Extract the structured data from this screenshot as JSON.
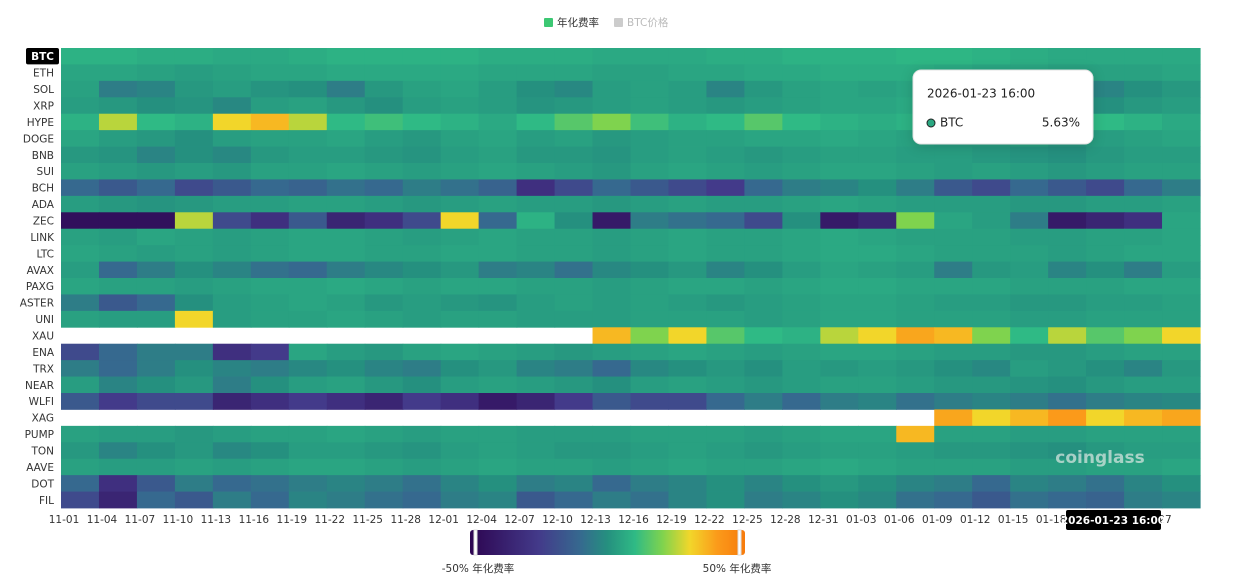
{
  "chart_data": {
    "type": "heatmap",
    "legend": [
      {
        "name": "年化费率",
        "color": "#3cc873"
      },
      {
        "name": "BTC价格",
        "color": "#cccccc"
      }
    ],
    "categories": [
      "11-01",
      "11-04",
      "11-07",
      "11-10",
      "11-13",
      "11-16",
      "11-19",
      "11-22",
      "11-25",
      "11-28",
      "12-01",
      "12-04",
      "12-07",
      "12-10",
      "12-13",
      "12-16",
      "12-19",
      "12-22",
      "12-25",
      "12-28",
      "12-31",
      "01-03",
      "01-06",
      "01-09",
      "01-12",
      "01-15",
      "01-18",
      null,
      null,
      "27"
    ],
    "rows": [
      {
        "name": "BTC",
        "values": [
          8,
          8,
          7,
          7,
          6,
          6,
          7,
          8,
          8,
          8,
          8,
          7,
          7,
          7,
          6,
          6,
          6,
          7,
          7,
          8,
          8,
          8,
          9,
          9,
          8,
          7,
          6,
          6,
          6,
          6
        ]
      },
      {
        "name": "ETH",
        "values": [
          5,
          5,
          4,
          3,
          4,
          5,
          5,
          6,
          6,
          6,
          6,
          5,
          5,
          5,
          4,
          4,
          5,
          5,
          6,
          6,
          7,
          7,
          7,
          6,
          5,
          5,
          4,
          4,
          4,
          5
        ]
      },
      {
        "name": "SOL",
        "values": [
          4,
          -5,
          -3,
          2,
          3,
          1,
          0,
          -5,
          2,
          4,
          5,
          3,
          0,
          -2,
          3,
          4,
          3,
          -3,
          2,
          4,
          5,
          4,
          5,
          5,
          3,
          2,
          -5,
          -3,
          0,
          2
        ]
      },
      {
        "name": "XRP",
        "values": [
          3,
          2,
          0,
          1,
          -2,
          3,
          4,
          2,
          0,
          3,
          4,
          3,
          1,
          2,
          3,
          4,
          3,
          2,
          3,
          4,
          5,
          5,
          6,
          5,
          3,
          2,
          1,
          0,
          2,
          3
        ]
      },
      {
        "name": "HYPE",
        "values": [
          8,
          25,
          10,
          8,
          30,
          35,
          25,
          10,
          12,
          10,
          8,
          6,
          10,
          15,
          20,
          12,
          8,
          10,
          15,
          10,
          8,
          7,
          8,
          8,
          8,
          10,
          12,
          10,
          8,
          6
        ]
      },
      {
        "name": "DOGE",
        "values": [
          5,
          3,
          2,
          0,
          3,
          4,
          4,
          5,
          3,
          2,
          4,
          5,
          3,
          4,
          2,
          3,
          4,
          4,
          5,
          5,
          6,
          5,
          4,
          3,
          3,
          4,
          2,
          3,
          4,
          5
        ]
      },
      {
        "name": "BNB",
        "values": [
          2,
          1,
          -3,
          0,
          -2,
          2,
          3,
          3,
          2,
          1,
          3,
          4,
          2,
          2,
          1,
          3,
          4,
          3,
          2,
          3,
          4,
          4,
          3,
          3,
          2,
          1,
          0,
          2,
          3,
          3
        ]
      },
      {
        "name": "SUI",
        "values": [
          4,
          3,
          2,
          3,
          2,
          4,
          4,
          5,
          4,
          3,
          4,
          5,
          4,
          3,
          2,
          4,
          5,
          4,
          3,
          4,
          5,
          5,
          4,
          3,
          4,
          3,
          2,
          3,
          4,
          4
        ]
      },
      {
        "name": "BCH",
        "values": [
          -10,
          -15,
          -10,
          -20,
          -15,
          -10,
          -12,
          -8,
          -10,
          -5,
          -8,
          -12,
          -30,
          -20,
          -10,
          -15,
          -20,
          -25,
          -10,
          -5,
          -3,
          0,
          -5,
          -15,
          -20,
          -10,
          -15,
          -20,
          -10,
          -5
        ]
      },
      {
        "name": "ADA",
        "values": [
          3,
          2,
          1,
          2,
          3,
          3,
          4,
          4,
          3,
          2,
          3,
          4,
          3,
          3,
          2,
          3,
          4,
          3,
          3,
          4,
          5,
          4,
          3,
          3,
          3,
          2,
          2,
          3,
          3,
          4
        ]
      },
      {
        "name": "ZEC",
        "values": [
          -45,
          -45,
          -45,
          25,
          -20,
          -30,
          -15,
          -35,
          -30,
          -20,
          30,
          -10,
          8,
          0,
          -40,
          -5,
          -8,
          -10,
          -20,
          0,
          -40,
          -35,
          20,
          5,
          3,
          -5,
          -40,
          -35,
          -30,
          5
        ]
      },
      {
        "name": "LINK",
        "values": [
          4,
          3,
          5,
          4,
          3,
          4,
          5,
          5,
          4,
          3,
          4,
          5,
          4,
          4,
          3,
          4,
          5,
          4,
          4,
          5,
          6,
          5,
          4,
          4,
          4,
          3,
          3,
          4,
          4,
          5
        ]
      },
      {
        "name": "LTC",
        "values": [
          5,
          4,
          3,
          4,
          3,
          4,
          5,
          5,
          4,
          4,
          5,
          5,
          4,
          4,
          3,
          4,
          5,
          4,
          4,
          5,
          6,
          6,
          5,
          4,
          4,
          4,
          3,
          4,
          5,
          5
        ]
      },
      {
        "name": "AVAX",
        "values": [
          3,
          -10,
          -5,
          0,
          -3,
          -8,
          -10,
          -5,
          -2,
          0,
          2,
          -5,
          -3,
          -8,
          -2,
          0,
          2,
          -3,
          0,
          3,
          5,
          4,
          3,
          -5,
          2,
          3,
          -3,
          0,
          -5,
          3
        ]
      },
      {
        "name": "PAXG",
        "values": [
          5,
          4,
          4,
          3,
          4,
          5,
          5,
          6,
          5,
          4,
          5,
          5,
          4,
          4,
          3,
          4,
          5,
          5,
          4,
          5,
          6,
          6,
          5,
          5,
          5,
          4,
          4,
          4,
          5,
          5
        ]
      },
      {
        "name": "ASTER",
        "values": [
          -5,
          -15,
          -10,
          0,
          3,
          4,
          5,
          4,
          2,
          3,
          2,
          1,
          3,
          4,
          3,
          4,
          3,
          2,
          3,
          4,
          5,
          5,
          4,
          3,
          3,
          2,
          2,
          3,
          3,
          4
        ]
      },
      {
        "name": "UNI",
        "values": [
          4,
          3,
          3,
          30,
          3,
          4,
          4,
          5,
          4,
          3,
          4,
          4,
          3,
          3,
          3,
          4,
          4,
          4,
          3,
          4,
          5,
          5,
          4,
          4,
          4,
          3,
          3,
          4,
          4,
          4
        ]
      },
      {
        "name": "XAU",
        "values": [
          null,
          null,
          null,
          null,
          null,
          null,
          null,
          null,
          null,
          null,
          null,
          null,
          null,
          null,
          35,
          20,
          30,
          15,
          10,
          8,
          25,
          30,
          38,
          35,
          20,
          10,
          25,
          15,
          20,
          30
        ]
      },
      {
        "name": "ENA",
        "values": [
          -20,
          -10,
          -5,
          -5,
          -30,
          -25,
          5,
          3,
          2,
          4,
          5,
          4,
          3,
          2,
          3,
          4,
          5,
          4,
          3,
          4,
          5,
          5,
          4,
          3,
          3,
          2,
          2,
          3,
          4,
          4
        ]
      },
      {
        "name": "TRX",
        "values": [
          -5,
          -10,
          -5,
          0,
          -3,
          -5,
          -2,
          0,
          -3,
          -5,
          0,
          2,
          -3,
          -5,
          -10,
          -2,
          0,
          2,
          0,
          3,
          2,
          3,
          2,
          0,
          -2,
          3,
          2,
          0,
          -3,
          2
        ]
      },
      {
        "name": "NEAR",
        "values": [
          3,
          -3,
          0,
          2,
          -5,
          0,
          3,
          4,
          2,
          0,
          3,
          4,
          3,
          2,
          0,
          3,
          4,
          3,
          2,
          3,
          4,
          4,
          3,
          2,
          2,
          1,
          0,
          2,
          3,
          3
        ]
      },
      {
        "name": "WLFI",
        "values": [
          -15,
          -25,
          -20,
          -20,
          -35,
          -30,
          -25,
          -30,
          -35,
          -25,
          -30,
          -40,
          -35,
          -25,
          -15,
          -20,
          -20,
          -10,
          -5,
          -10,
          -5,
          -3,
          -8,
          -5,
          -3,
          -5,
          -8,
          -5,
          -3,
          -2
        ]
      },
      {
        "name": "XAG",
        "values": [
          null,
          null,
          null,
          null,
          null,
          null,
          null,
          null,
          null,
          null,
          null,
          null,
          null,
          null,
          null,
          null,
          null,
          null,
          null,
          null,
          null,
          null,
          null,
          38,
          30,
          35,
          40,
          30,
          35,
          38
        ]
      },
      {
        "name": "PUMP",
        "values": [
          4,
          3,
          3,
          2,
          3,
          4,
          4,
          5,
          4,
          3,
          4,
          4,
          3,
          3,
          3,
          4,
          4,
          4,
          3,
          4,
          5,
          5,
          35,
          4,
          4,
          3,
          3,
          4,
          4,
          4
        ]
      },
      {
        "name": "TON",
        "values": [
          2,
          -3,
          0,
          2,
          -2,
          0,
          3,
          3,
          2,
          1,
          3,
          4,
          3,
          2,
          2,
          3,
          4,
          3,
          2,
          3,
          4,
          4,
          3,
          2,
          2,
          1,
          0,
          2,
          3,
          3
        ]
      },
      {
        "name": "AAVE",
        "values": [
          4,
          3,
          3,
          4,
          3,
          4,
          5,
          5,
          4,
          3,
          4,
          5,
          4,
          4,
          3,
          4,
          5,
          4,
          4,
          5,
          6,
          5,
          4,
          4,
          4,
          3,
          3,
          4,
          4,
          5
        ]
      },
      {
        "name": "DOT",
        "values": [
          -10,
          -30,
          -15,
          -5,
          -10,
          -8,
          -5,
          -3,
          -5,
          -8,
          -3,
          0,
          -5,
          -3,
          -10,
          -5,
          -3,
          0,
          -3,
          0,
          2,
          0,
          -3,
          -5,
          -10,
          -3,
          -5,
          -8,
          -3,
          0
        ]
      },
      {
        "name": "FIL",
        "values": [
          -20,
          -35,
          -10,
          -15,
          -5,
          -10,
          -3,
          -5,
          -8,
          -10,
          -5,
          -3,
          -15,
          -10,
          -5,
          -8,
          -3,
          0,
          -5,
          -3,
          0,
          -2,
          -8,
          -10,
          -15,
          -8,
          -10,
          -12,
          -5,
          -3
        ]
      }
    ],
    "colorscale": [
      [
        -50,
        "#2d0551"
      ],
      [
        -25,
        "#433a8a"
      ],
      [
        -10,
        "#36698f"
      ],
      [
        0,
        "#25907f"
      ],
      [
        10,
        "#2fba85"
      ],
      [
        20,
        "#7fd34e"
      ],
      [
        30,
        "#f2d62a"
      ],
      [
        40,
        "#fb9a1a"
      ],
      [
        50,
        "#f77b0c"
      ]
    ],
    "colorbar": {
      "ticks": [
        {
          "value": -50,
          "label": "-50% 年化费率"
        },
        {
          "value": 50,
          "label": "50% 年化费率"
        }
      ]
    },
    "tooltip": {
      "time": "2026-01-23 16:00",
      "series": "BTC",
      "value": 5.63,
      "value_label": "5.63%"
    },
    "watermark": "coinglass"
  }
}
